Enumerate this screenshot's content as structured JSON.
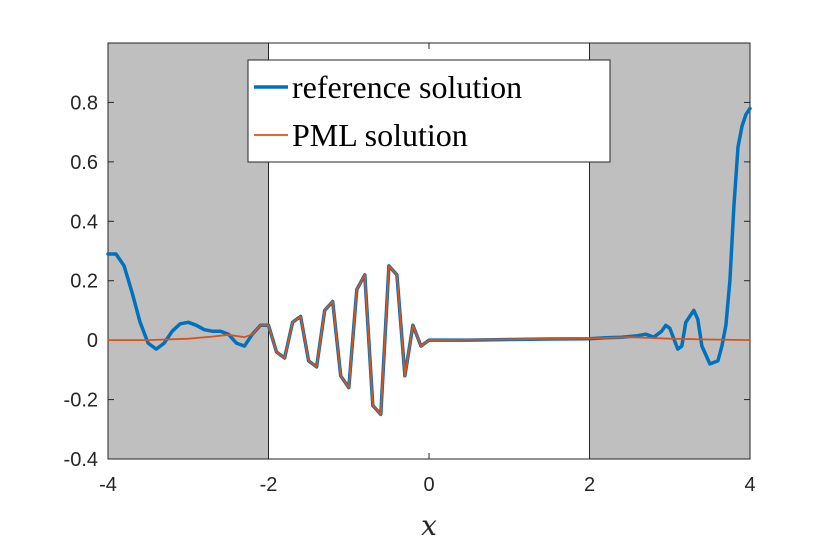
{
  "chart_data": {
    "type": "line",
    "title": "",
    "xlabel": "x",
    "ylabel": "",
    "xlim": [
      -4,
      4
    ],
    "ylim": [
      -0.4,
      1.0
    ],
    "xticks": [
      "-4",
      "-2",
      "0",
      "2",
      "4"
    ],
    "yticks": [
      "-0.4",
      "-0.2",
      "0",
      "0.2",
      "0.4",
      "0.6",
      "0.8"
    ],
    "grid": false,
    "legend_position": "top-center",
    "shaded_regions": [
      {
        "x0": -4,
        "x1": -2,
        "color": "#bfbfbf"
      },
      {
        "x0": 2,
        "x1": 4,
        "color": "#bfbfbf"
      }
    ],
    "series": [
      {
        "name": "reference solution",
        "color": "#0072bd",
        "x": [
          -4.0,
          -3.9,
          -3.8,
          -3.7,
          -3.6,
          -3.5,
          -3.4,
          -3.35,
          -3.3,
          -3.2,
          -3.1,
          -3.0,
          -2.9,
          -2.8,
          -2.7,
          -2.6,
          -2.5,
          -2.4,
          -2.3,
          -2.2,
          -2.1,
          -2.0,
          -1.9,
          -1.8,
          -1.7,
          -1.6,
          -1.5,
          -1.4,
          -1.3,
          -1.2,
          -1.1,
          -1.0,
          -0.9,
          -0.8,
          -0.7,
          -0.6,
          -0.5,
          -0.4,
          -0.3,
          -0.2,
          -0.1,
          0.0,
          0.5,
          1.0,
          1.5,
          2.0,
          2.2,
          2.4,
          2.6,
          2.7,
          2.8,
          2.9,
          2.95,
          3.0,
          3.1,
          3.15,
          3.2,
          3.3,
          3.35,
          3.4,
          3.5,
          3.6,
          3.65,
          3.7,
          3.75,
          3.8,
          3.85,
          3.9,
          3.95,
          4.0
        ],
        "y": [
          0.29,
          0.29,
          0.25,
          0.16,
          0.06,
          -0.01,
          -0.03,
          -0.02,
          -0.01,
          0.03,
          0.055,
          0.06,
          0.05,
          0.035,
          0.03,
          0.03,
          0.02,
          -0.01,
          -0.02,
          0.02,
          0.05,
          0.05,
          -0.04,
          -0.06,
          0.06,
          0.08,
          -0.07,
          -0.09,
          0.1,
          0.13,
          -0.12,
          -0.16,
          0.17,
          0.22,
          -0.22,
          -0.25,
          0.25,
          0.22,
          -0.12,
          0.05,
          -0.02,
          0.0,
          0.0,
          0.002,
          0.004,
          0.005,
          0.008,
          0.01,
          0.015,
          0.02,
          0.01,
          0.03,
          0.05,
          0.04,
          -0.03,
          -0.02,
          0.06,
          0.1,
          0.07,
          -0.02,
          -0.08,
          -0.07,
          -0.02,
          0.05,
          0.2,
          0.45,
          0.65,
          0.72,
          0.76,
          0.78
        ]
      },
      {
        "name": "PML solution",
        "color": "#d95319",
        "x": [
          -4.0,
          -3.5,
          -3.0,
          -2.7,
          -2.5,
          -2.3,
          -2.2,
          -2.1,
          -2.0,
          -1.9,
          -1.8,
          -1.7,
          -1.6,
          -1.5,
          -1.4,
          -1.3,
          -1.2,
          -1.1,
          -1.0,
          -0.9,
          -0.8,
          -0.7,
          -0.6,
          -0.5,
          -0.4,
          -0.3,
          -0.2,
          -0.1,
          0.0,
          1.0,
          2.0,
          2.5,
          3.0,
          3.5,
          4.0
        ],
        "y": [
          0.0,
          0.0,
          0.005,
          0.012,
          0.018,
          0.01,
          0.02,
          0.05,
          0.05,
          -0.04,
          -0.06,
          0.06,
          0.08,
          -0.07,
          -0.09,
          0.1,
          0.13,
          -0.12,
          -0.16,
          0.17,
          0.22,
          -0.22,
          -0.25,
          0.25,
          0.22,
          -0.12,
          0.05,
          -0.02,
          0.0,
          0.003,
          0.006,
          0.01,
          0.005,
          0.002,
          0.0
        ]
      }
    ]
  }
}
